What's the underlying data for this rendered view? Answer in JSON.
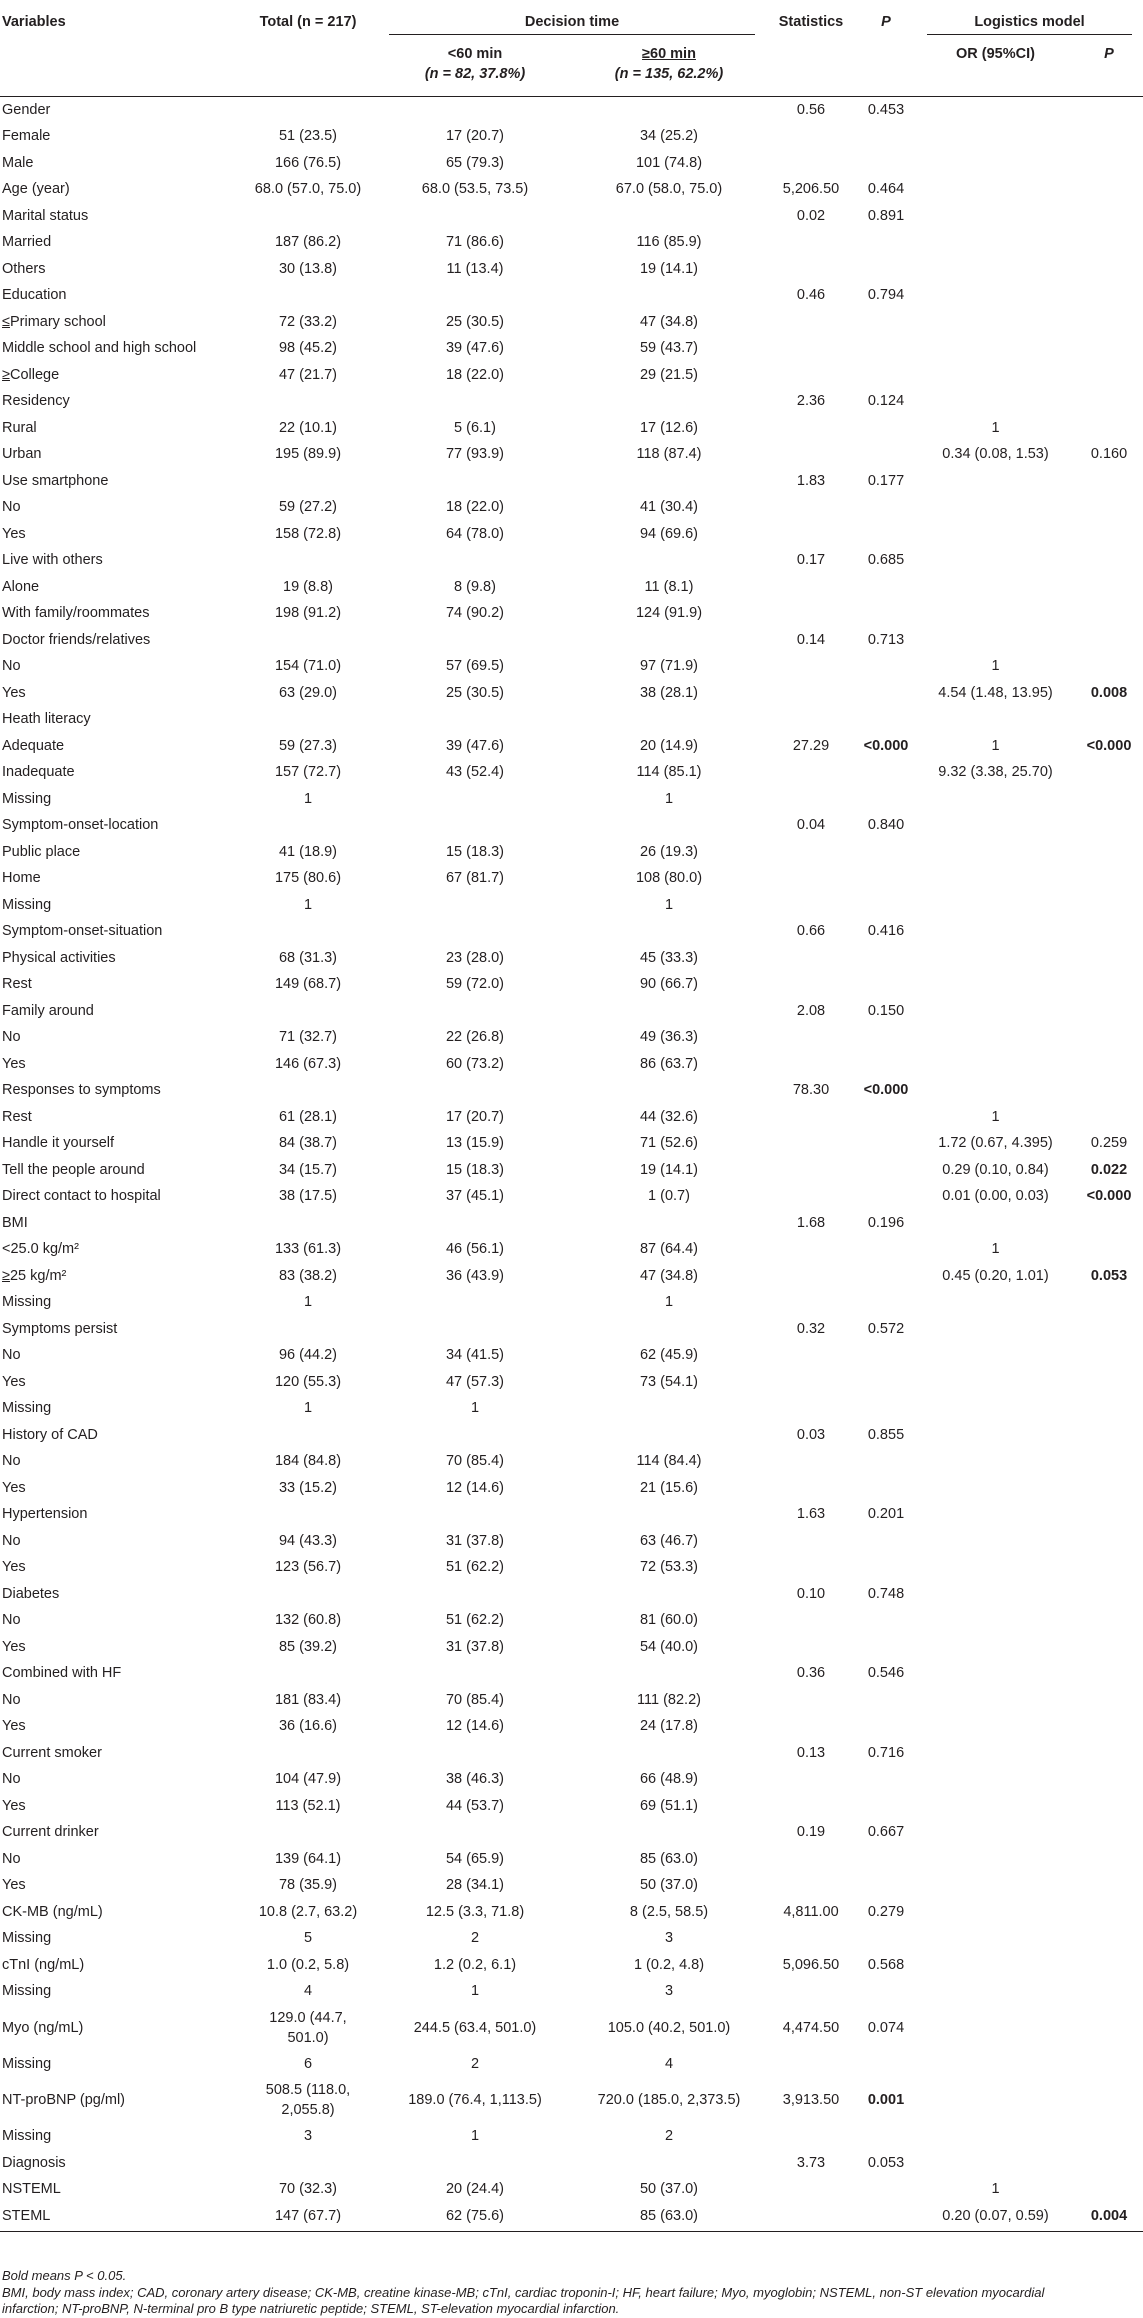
{
  "header": {
    "variables": "Variables",
    "total": "Total (n = 217)",
    "decision_time": "Decision time",
    "lt60_line1": "<60 min",
    "lt60_line2": "(n = 82, 37.8%)",
    "ge60_line1": "≥60 min",
    "ge60_line2": "(n = 135, 62.2%)",
    "statistics": "Statistics",
    "p": "P",
    "logistics_model": "Logistics model",
    "or": "OR (95%CI)",
    "p2": "P"
  },
  "rows": [
    {
      "v": "Gender",
      "t": "",
      "a": "",
      "b": "",
      "s": "0.56",
      "p": "0.453",
      "or": "",
      "p2": ""
    },
    {
      "v": "Female",
      "t": "51 (23.5)",
      "a": "17 (20.7)",
      "b": "34 (25.2)",
      "s": "",
      "p": "",
      "or": "",
      "p2": ""
    },
    {
      "v": "Male",
      "t": "166 (76.5)",
      "a": "65 (79.3)",
      "b": "101 (74.8)",
      "s": "",
      "p": "",
      "or": "",
      "p2": ""
    },
    {
      "v": "Age (year)",
      "t": "68.0 (57.0, 75.0)",
      "a": "68.0 (53.5, 73.5)",
      "b": "67.0 (58.0, 75.0)",
      "s": "5,206.50",
      "p": "0.464",
      "or": "",
      "p2": ""
    },
    {
      "v": "Marital status",
      "t": "",
      "a": "",
      "b": "",
      "s": "0.02",
      "p": "0.891",
      "or": "",
      "p2": ""
    },
    {
      "v": "Married",
      "t": "187 (86.2)",
      "a": "71 (86.6)",
      "b": "116 (85.9)",
      "s": "",
      "p": "",
      "or": "",
      "p2": ""
    },
    {
      "v": "Others",
      "t": "30 (13.8)",
      "a": "11 (13.4)",
      "b": "19 (14.1)",
      "s": "",
      "p": "",
      "or": "",
      "p2": ""
    },
    {
      "v": "Education",
      "t": "",
      "a": "",
      "b": "",
      "s": "0.46",
      "p": "0.794",
      "or": "",
      "p2": ""
    },
    {
      "v": "≤Primary school",
      "t": "72 (33.2)",
      "a": "25 (30.5)",
      "b": "47 (34.8)",
      "s": "",
      "p": "",
      "or": "",
      "p2": "",
      "ge": true
    },
    {
      "v": "Middle school and high school",
      "t": "98 (45.2)",
      "a": "39 (47.6)",
      "b": "59 (43.7)",
      "s": "",
      "p": "",
      "or": "",
      "p2": ""
    },
    {
      "v": "≥College",
      "t": "47 (21.7)",
      "a": "18 (22.0)",
      "b": "29 (21.5)",
      "s": "",
      "p": "",
      "or": "",
      "p2": "",
      "ge": true
    },
    {
      "v": "Residency",
      "t": "",
      "a": "",
      "b": "",
      "s": "2.36",
      "p": "0.124",
      "or": "",
      "p2": ""
    },
    {
      "v": "Rural",
      "t": "22 (10.1)",
      "a": "5 (6.1)",
      "b": "17 (12.6)",
      "s": "",
      "p": "",
      "or": "1",
      "p2": ""
    },
    {
      "v": "Urban",
      "t": "195 (89.9)",
      "a": "77 (93.9)",
      "b": "118 (87.4)",
      "s": "",
      "p": "",
      "or": "0.34 (0.08, 1.53)",
      "p2": "0.160"
    },
    {
      "v": "Use smartphone",
      "t": "",
      "a": "",
      "b": "",
      "s": "1.83",
      "p": "0.177",
      "or": "",
      "p2": ""
    },
    {
      "v": "No",
      "t": "59 (27.2)",
      "a": "18 (22.0)",
      "b": "41 (30.4)",
      "s": "",
      "p": "",
      "or": "",
      "p2": ""
    },
    {
      "v": "Yes",
      "t": "158 (72.8)",
      "a": "64 (78.0)",
      "b": "94 (69.6)",
      "s": "",
      "p": "",
      "or": "",
      "p2": ""
    },
    {
      "v": "Live with others",
      "t": "",
      "a": "",
      "b": "",
      "s": "0.17",
      "p": "0.685",
      "or": "",
      "p2": ""
    },
    {
      "v": "Alone",
      "t": "19 (8.8)",
      "a": "8 (9.8)",
      "b": "11 (8.1)",
      "s": "",
      "p": "",
      "or": "",
      "p2": ""
    },
    {
      "v": "With family/roommates",
      "t": "198 (91.2)",
      "a": "74 (90.2)",
      "b": "124 (91.9)",
      "s": "",
      "p": "",
      "or": "",
      "p2": ""
    },
    {
      "v": "Doctor friends/relatives",
      "t": "",
      "a": "",
      "b": "",
      "s": "0.14",
      "p": "0.713",
      "or": "",
      "p2": ""
    },
    {
      "v": "No",
      "t": "154 (71.0)",
      "a": "57 (69.5)",
      "b": "97 (71.9)",
      "s": "",
      "p": "",
      "or": "1",
      "p2": ""
    },
    {
      "v": "Yes",
      "t": "63 (29.0)",
      "a": "25 (30.5)",
      "b": "38 (28.1)",
      "s": "",
      "p": "",
      "or": "4.54 (1.48, 13.95)",
      "p2": "0.008",
      "p2b": true
    },
    {
      "v": "Heath literacy",
      "t": "",
      "a": "",
      "b": "",
      "s": "",
      "p": "",
      "or": "",
      "p2": ""
    },
    {
      "v": "Adequate",
      "t": "59 (27.3)",
      "a": "39 (47.6)",
      "b": "20 (14.9)",
      "s": "27.29",
      "p": "<0.000",
      "pb": true,
      "or": "1",
      "p2": "<0.000",
      "p2b": true
    },
    {
      "v": "Inadequate",
      "t": "157 (72.7)",
      "a": "43 (52.4)",
      "b": "114 (85.1)",
      "s": "",
      "p": "",
      "or": "9.32 (3.38, 25.70)",
      "p2": ""
    },
    {
      "v": "Missing",
      "t": "1",
      "a": "",
      "b": "1",
      "s": "",
      "p": "",
      "or": "",
      "p2": ""
    },
    {
      "v": "Symptom-onset-location",
      "t": "",
      "a": "",
      "b": "",
      "s": "0.04",
      "p": "0.840",
      "or": "",
      "p2": ""
    },
    {
      "v": "Public place",
      "t": "41 (18.9)",
      "a": "15 (18.3)",
      "b": "26 (19.3)",
      "s": "",
      "p": "",
      "or": "",
      "p2": ""
    },
    {
      "v": "Home",
      "t": "175 (80.6)",
      "a": "67 (81.7)",
      "b": "108 (80.0)",
      "s": "",
      "p": "",
      "or": "",
      "p2": ""
    },
    {
      "v": "Missing",
      "t": "1",
      "a": "",
      "b": "1",
      "s": "",
      "p": "",
      "or": "",
      "p2": ""
    },
    {
      "v": "Symptom-onset-situation",
      "t": "",
      "a": "",
      "b": "",
      "s": "0.66",
      "p": "0.416",
      "or": "",
      "p2": ""
    },
    {
      "v": "Physical activities",
      "t": "68 (31.3)",
      "a": "23 (28.0)",
      "b": "45 (33.3)",
      "s": "",
      "p": "",
      "or": "",
      "p2": ""
    },
    {
      "v": "Rest",
      "t": "149 (68.7)",
      "a": "59 (72.0)",
      "b": "90 (66.7)",
      "s": "",
      "p": "",
      "or": "",
      "p2": ""
    },
    {
      "v": "Family around",
      "t": "",
      "a": "",
      "b": "",
      "s": "2.08",
      "p": "0.150",
      "or": "",
      "p2": ""
    },
    {
      "v": "No",
      "t": "71 (32.7)",
      "a": "22 (26.8)",
      "b": "49 (36.3)",
      "s": "",
      "p": "",
      "or": "",
      "p2": ""
    },
    {
      "v": "Yes",
      "t": "146 (67.3)",
      "a": "60 (73.2)",
      "b": "86 (63.7)",
      "s": "",
      "p": "",
      "or": "",
      "p2": ""
    },
    {
      "v": "Responses to symptoms",
      "t": "",
      "a": "",
      "b": "",
      "s": "78.30",
      "p": "<0.000",
      "pb": true,
      "or": "",
      "p2": ""
    },
    {
      "v": "Rest",
      "t": "61 (28.1)",
      "a": "17 (20.7)",
      "b": "44 (32.6)",
      "s": "",
      "p": "",
      "or": "1",
      "p2": ""
    },
    {
      "v": "Handle it yourself",
      "t": "84 (38.7)",
      "a": "13 (15.9)",
      "b": "71 (52.6)",
      "s": "",
      "p": "",
      "or": "1.72 (0.67, 4.395)",
      "p2": "0.259"
    },
    {
      "v": "Tell the people around",
      "t": "34 (15.7)",
      "a": "15 (18.3)",
      "b": "19 (14.1)",
      "s": "",
      "p": "",
      "or": "0.29 (0.10, 0.84)",
      "p2": "0.022",
      "p2b": true
    },
    {
      "v": "Direct contact to hospital",
      "t": "38 (17.5)",
      "a": "37 (45.1)",
      "b": "1 (0.7)",
      "s": "",
      "p": "",
      "or": "0.01 (0.00, 0.03)",
      "p2": "<0.000",
      "p2b": true
    },
    {
      "v": "BMI",
      "t": "",
      "a": "",
      "b": "",
      "s": "1.68",
      "p": "0.196",
      "or": "",
      "p2": ""
    },
    {
      "v": "<25.0 kg/m²",
      "t": "133 (61.3)",
      "a": "46 (56.1)",
      "b": "87 (64.4)",
      "s": "",
      "p": "",
      "or": "1",
      "p2": ""
    },
    {
      "v": "≥25 kg/m²",
      "t": "83 (38.2)",
      "a": "36 (43.9)",
      "b": "47 (34.8)",
      "s": "",
      "p": "",
      "or": "0.45 (0.20, 1.01)",
      "p2": "0.053",
      "p2b": true,
      "ge": true
    },
    {
      "v": "Missing",
      "t": "1",
      "a": "",
      "b": "1",
      "s": "",
      "p": "",
      "or": "",
      "p2": ""
    },
    {
      "v": "Symptoms persist",
      "t": "",
      "a": "",
      "b": "",
      "s": "0.32",
      "p": "0.572",
      "or": "",
      "p2": ""
    },
    {
      "v": "No",
      "t": "96 (44.2)",
      "a": "34 (41.5)",
      "b": "62 (45.9)",
      "s": "",
      "p": "",
      "or": "",
      "p2": ""
    },
    {
      "v": "Yes",
      "t": "120 (55.3)",
      "a": "47 (57.3)",
      "b": "73 (54.1)",
      "s": "",
      "p": "",
      "or": "",
      "p2": ""
    },
    {
      "v": "Missing",
      "t": "1",
      "a": "1",
      "b": "",
      "s": "",
      "p": "",
      "or": "",
      "p2": ""
    },
    {
      "v": "History of CAD",
      "t": "",
      "a": "",
      "b": "",
      "s": "0.03",
      "p": "0.855",
      "or": "",
      "p2": ""
    },
    {
      "v": "No",
      "t": "184 (84.8)",
      "a": "70 (85.4)",
      "b": "114 (84.4)",
      "s": "",
      "p": "",
      "or": "",
      "p2": ""
    },
    {
      "v": "Yes",
      "t": "33 (15.2)",
      "a": "12 (14.6)",
      "b": "21 (15.6)",
      "s": "",
      "p": "",
      "or": "",
      "p2": ""
    },
    {
      "v": "Hypertension",
      "t": "",
      "a": "",
      "b": "",
      "s": "1.63",
      "p": "0.201",
      "or": "",
      "p2": ""
    },
    {
      "v": "No",
      "t": "94 (43.3)",
      "a": "31 (37.8)",
      "b": "63 (46.7)",
      "s": "",
      "p": "",
      "or": "",
      "p2": ""
    },
    {
      "v": "Yes",
      "t": "123 (56.7)",
      "a": "51 (62.2)",
      "b": "72 (53.3)",
      "s": "",
      "p": "",
      "or": "",
      "p2": ""
    },
    {
      "v": "Diabetes",
      "t": "",
      "a": "",
      "b": "",
      "s": "0.10",
      "p": "0.748",
      "or": "",
      "p2": ""
    },
    {
      "v": "No",
      "t": "132 (60.8)",
      "a": "51 (62.2)",
      "b": "81 (60.0)",
      "s": "",
      "p": "",
      "or": "",
      "p2": ""
    },
    {
      "v": "Yes",
      "t": "85 (39.2)",
      "a": "31 (37.8)",
      "b": "54 (40.0)",
      "s": "",
      "p": "",
      "or": "",
      "p2": ""
    },
    {
      "v": "Combined with HF",
      "t": "",
      "a": "",
      "b": "",
      "s": "0.36",
      "p": "0.546",
      "or": "",
      "p2": ""
    },
    {
      "v": "No",
      "t": "181 (83.4)",
      "a": "70 (85.4)",
      "b": "111 (82.2)",
      "s": "",
      "p": "",
      "or": "",
      "p2": ""
    },
    {
      "v": "Yes",
      "t": "36 (16.6)",
      "a": "12 (14.6)",
      "b": "24 (17.8)",
      "s": "",
      "p": "",
      "or": "",
      "p2": ""
    },
    {
      "v": "Current smoker",
      "t": "",
      "a": "",
      "b": "",
      "s": "0.13",
      "p": "0.716",
      "or": "",
      "p2": ""
    },
    {
      "v": "No",
      "t": "104 (47.9)",
      "a": "38 (46.3)",
      "b": "66 (48.9)",
      "s": "",
      "p": "",
      "or": "",
      "p2": ""
    },
    {
      "v": "Yes",
      "t": "113 (52.1)",
      "a": "44 (53.7)",
      "b": "69 (51.1)",
      "s": "",
      "p": "",
      "or": "",
      "p2": ""
    },
    {
      "v": "Current drinker",
      "t": "",
      "a": "",
      "b": "",
      "s": "0.19",
      "p": "0.667",
      "or": "",
      "p2": ""
    },
    {
      "v": "No",
      "t": "139 (64.1)",
      "a": "54 (65.9)",
      "b": "85 (63.0)",
      "s": "",
      "p": "",
      "or": "",
      "p2": ""
    },
    {
      "v": "Yes",
      "t": "78 (35.9)",
      "a": "28 (34.1)",
      "b": "50 (37.0)",
      "s": "",
      "p": "",
      "or": "",
      "p2": ""
    },
    {
      "v": "CK-MB (ng/mL)",
      "t": "10.8 (2.7, 63.2)",
      "a": "12.5 (3.3, 71.8)",
      "b": "8 (2.5, 58.5)",
      "s": "4,811.00",
      "p": "0.279",
      "or": "",
      "p2": ""
    },
    {
      "v": "Missing",
      "t": "5",
      "a": "2",
      "b": "3",
      "s": "",
      "p": "",
      "or": "",
      "p2": ""
    },
    {
      "v": "cTnI (ng/mL)",
      "t": "1.0 (0.2, 5.8)",
      "a": "1.2 (0.2, 6.1)",
      "b": "1 (0.2, 4.8)",
      "s": "5,096.50",
      "p": "0.568",
      "or": "",
      "p2": ""
    },
    {
      "v": "Missing",
      "t": "4",
      "a": "1",
      "b": "3",
      "s": "",
      "p": "",
      "or": "",
      "p2": ""
    },
    {
      "v": "Myo (ng/mL)",
      "t": "129.0 (44.7,",
      "t2": "501.0)",
      "a": "244.5 (63.4, 501.0)",
      "b": "105.0 (40.2, 501.0)",
      "s": "4,474.50",
      "p": "0.074",
      "or": "",
      "p2": "",
      "tall": true
    },
    {
      "v": "Missing",
      "t": "6",
      "a": "2",
      "b": "4",
      "s": "",
      "p": "",
      "or": "",
      "p2": ""
    },
    {
      "v": "NT-proBNP (pg/ml)",
      "t": "508.5 (118.0,",
      "t2": "2,055.8)",
      "a": "189.0 (76.4, 1,113.5)",
      "b": "720.0 (185.0, 2,373.5)",
      "s": "3,913.50",
      "p": "0.001",
      "pb": true,
      "or": "",
      "p2": "",
      "tall": true
    },
    {
      "v": "Missing",
      "t": "3",
      "a": "1",
      "b": "2",
      "s": "",
      "p": "",
      "or": "",
      "p2": ""
    },
    {
      "v": "Diagnosis",
      "t": "",
      "a": "",
      "b": "",
      "s": "3.73",
      "p": "0.053",
      "or": "",
      "p2": ""
    },
    {
      "v": "NSTEML",
      "t": "70 (32.3)",
      "a": "20 (24.4)",
      "b": "50 (37.0)",
      "s": "",
      "p": "",
      "or": "1",
      "p2": ""
    },
    {
      "v": "STEML",
      "t": "147 (67.7)",
      "a": "62 (75.6)",
      "b": "85 (63.0)",
      "s": "",
      "p": "",
      "or": "0.20 (0.07, 0.59)",
      "p2": "0.004",
      "p2b": true
    }
  ],
  "footnotes": {
    "bold_note": "Bold means P < 0.05.",
    "abbrev_1": "BMI, body mass index; CAD, coronary artery disease; CK-MB, creatine kinase-MB; cTnI, cardiac troponin-I; HF, heart failure; Myo, myoglobin; NSTEML, non-ST elevation myocardial",
    "abbrev_2": "infarction; NT-proBNP, N-terminal pro B type natriuretic peptide; STEML, ST-elevation myocardial infarction."
  }
}
